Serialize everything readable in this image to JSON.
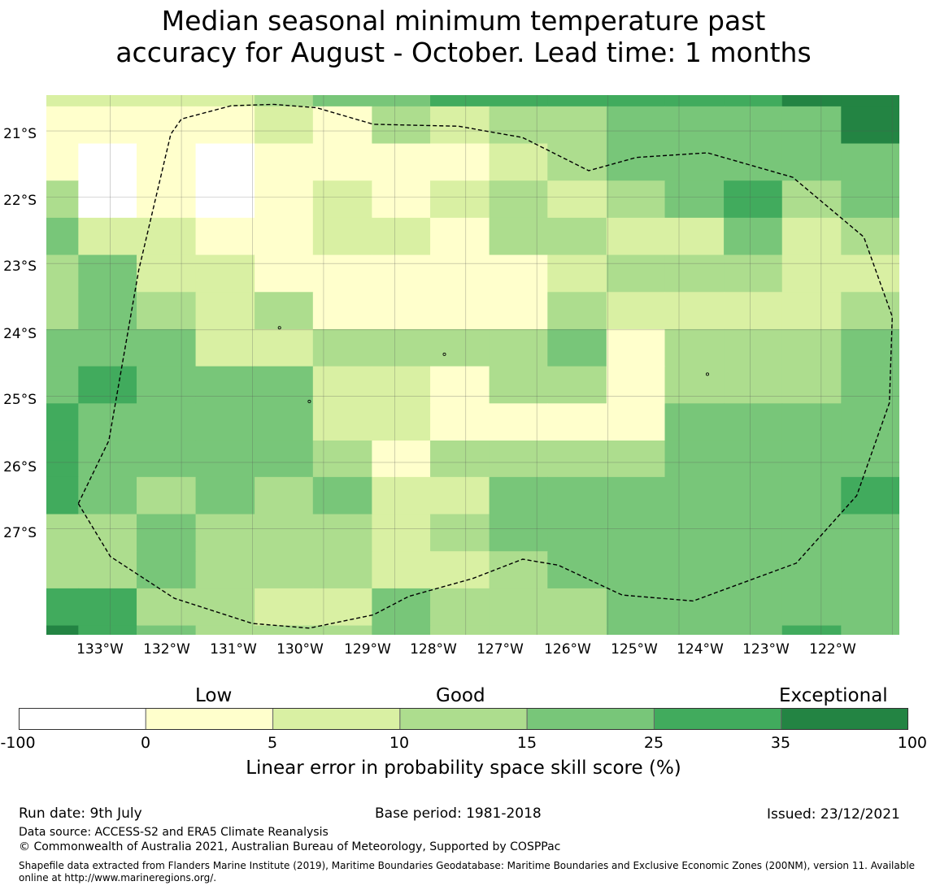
{
  "title_line1": "Median seasonal minimum temperature past",
  "title_line2": "accuracy for August - October. Lead time: 1 months",
  "map": {
    "lat_labels": [
      "21°S",
      "22°S",
      "23°S",
      "24°S",
      "25°S",
      "26°S",
      "27°S"
    ],
    "lon_labels": [
      "133°W",
      "132°W",
      "131°W",
      "130°W",
      "129°W",
      "128°W",
      "127°W",
      "126°W",
      "125°W",
      "124°W",
      "123°W",
      "122°W"
    ]
  },
  "colorbar": {
    "categories": {
      "low": "Low",
      "good": "Good",
      "exceptional": "Exceptional"
    },
    "ticks": [
      "-100",
      "0",
      "5",
      "10",
      "15",
      "25",
      "35",
      "100"
    ],
    "colors": [
      "#ffffff",
      "#ffffcc",
      "#d9f0a3",
      "#addd8e",
      "#78c679",
      "#41ab5d",
      "#238443"
    ],
    "label": "Linear error in probability space skill score (%)"
  },
  "footer": {
    "run_date": "Run date: 9th July",
    "base_period": "Base period: 1981-2018",
    "issued": "Issued: 23/12/2021",
    "data_source": "Data source: ACCESS-S2 and ERA5 Climate Reanalysis",
    "copyright": "© Commonwealth of Australia 2021, Australian Bureau of Meteorology, Supported by COSPPac",
    "shapefile_line1": "Shapefile data extracted from Flanders Marine Institute (2019), Maritime Boundaries Geodatabase: Maritime Boundaries and Exclusive Economic Zones (200NM), version 11. Available",
    "shapefile_line2": "online at http://www.marineregions.org/."
  },
  "grid": {
    "lon_edges": [
      -133.9,
      -133.45,
      -132.63,
      -131.8,
      -130.97,
      -130.15,
      -129.32,
      -128.5,
      -127.67,
      -126.85,
      -126.02,
      -125.2,
      -124.37,
      -123.55,
      -122.72,
      -121.9
    ],
    "lat_edges": [
      -20.46,
      -20.63,
      -21.19,
      -21.75,
      -22.31,
      -22.87,
      -23.43,
      -23.99,
      -24.55,
      -25.11,
      -25.67,
      -26.22,
      -26.78,
      -27.34,
      -27.9,
      -28.46,
      -28.6
    ],
    "rows": [
      [
        2,
        2,
        2,
        2,
        3,
        4,
        4,
        5,
        5,
        5,
        5,
        5,
        5,
        6,
        6
      ],
      [
        1,
        1,
        1,
        1,
        2,
        1,
        3,
        2,
        3,
        3,
        4,
        4,
        4,
        4,
        6
      ],
      [
        1,
        0,
        1,
        0,
        1,
        1,
        1,
        1,
        2,
        3,
        4,
        4,
        4,
        4,
        4
      ],
      [
        3,
        0,
        1,
        0,
        1,
        2,
        1,
        2,
        3,
        2,
        3,
        4,
        5,
        3,
        4
      ],
      [
        4,
        2,
        2,
        1,
        1,
        2,
        2,
        1,
        3,
        3,
        2,
        2,
        4,
        2,
        3
      ],
      [
        3,
        4,
        2,
        2,
        1,
        1,
        1,
        1,
        1,
        2,
        3,
        3,
        3,
        2,
        2
      ],
      [
        3,
        4,
        3,
        2,
        3,
        1,
        1,
        1,
        1,
        3,
        2,
        2,
        2,
        2,
        3
      ],
      [
        4,
        4,
        4,
        2,
        2,
        3,
        3,
        3,
        3,
        4,
        1,
        3,
        3,
        3,
        4
      ],
      [
        4,
        5,
        4,
        4,
        4,
        2,
        2,
        1,
        3,
        3,
        1,
        3,
        3,
        3,
        4
      ],
      [
        5,
        4,
        4,
        4,
        4,
        2,
        2,
        1,
        1,
        1,
        1,
        4,
        4,
        4,
        4
      ],
      [
        5,
        4,
        4,
        4,
        4,
        3,
        1,
        3,
        3,
        3,
        3,
        4,
        4,
        4,
        4
      ],
      [
        5,
        4,
        3,
        4,
        3,
        4,
        2,
        2,
        4,
        4,
        4,
        4,
        4,
        4,
        5
      ],
      [
        3,
        3,
        4,
        3,
        3,
        3,
        2,
        3,
        4,
        4,
        4,
        4,
        4,
        4,
        4
      ],
      [
        3,
        3,
        4,
        3,
        3,
        3,
        2,
        2,
        3,
        4,
        4,
        4,
        4,
        4,
        4
      ],
      [
        5,
        5,
        3,
        3,
        2,
        2,
        4,
        3,
        3,
        3,
        4,
        4,
        4,
        4,
        4
      ],
      [
        6,
        5,
        4,
        3,
        3,
        3,
        4,
        3,
        3,
        3,
        4,
        4,
        4,
        5,
        4
      ]
    ]
  },
  "boundary": [
    [
      -133.45,
      -26.62
    ],
    [
      -133.02,
      -25.67
    ],
    [
      -132.6,
      -23.1
    ],
    [
      -132.15,
      -21.05
    ],
    [
      -132.0,
      -20.82
    ],
    [
      -131.3,
      -20.62
    ],
    [
      -130.7,
      -20.6
    ],
    [
      -130.1,
      -20.65
    ],
    [
      -129.3,
      -20.9
    ],
    [
      -128.1,
      -20.93
    ],
    [
      -127.2,
      -21.1
    ],
    [
      -126.27,
      -21.6
    ],
    [
      -125.6,
      -21.4
    ],
    [
      -124.6,
      -21.33
    ],
    [
      -123.4,
      -21.7
    ],
    [
      -122.4,
      -22.6
    ],
    [
      -122.0,
      -23.8
    ],
    [
      -122.04,
      -25.1
    ],
    [
      -122.5,
      -26.5
    ],
    [
      -123.35,
      -27.52
    ],
    [
      -124.8,
      -28.09
    ],
    [
      -125.8,
      -28.0
    ],
    [
      -126.7,
      -27.55
    ],
    [
      -127.2,
      -27.46
    ],
    [
      -127.9,
      -27.75
    ],
    [
      -128.8,
      -28.02
    ],
    [
      -129.3,
      -28.3
    ],
    [
      -130.2,
      -28.5
    ],
    [
      -131.0,
      -28.43
    ],
    [
      -132.1,
      -28.05
    ],
    [
      -133.0,
      -27.42
    ],
    [
      -133.45,
      -26.62
    ]
  ],
  "islets": [
    [
      -128.3,
      -24.37
    ],
    [
      -124.6,
      -24.67
    ],
    [
      -130.62,
      -23.97
    ],
    [
      -130.2,
      -25.08
    ]
  ]
}
